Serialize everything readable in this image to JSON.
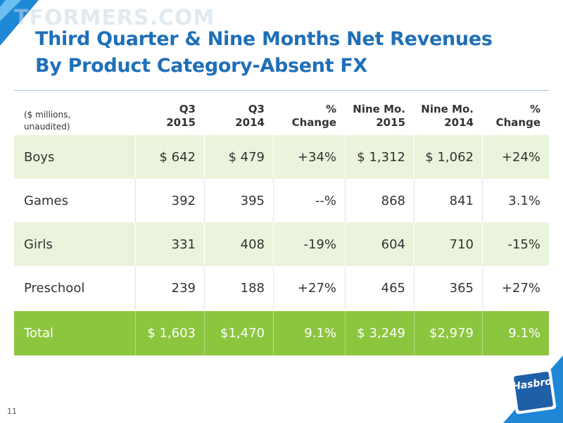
{
  "watermark": "TFORMERS.COM",
  "title": [
    "Third Quarter & Nine Months Net Revenues",
    "By Product Category-Absent FX"
  ],
  "table": {
    "header": [
      [
        "($ millions,",
        "unaudited)"
      ],
      [
        "Q3",
        "2015"
      ],
      [
        "Q3",
        "2014"
      ],
      [
        "%",
        "Change"
      ],
      [
        "Nine Mo.",
        "2015"
      ],
      [
        "Nine Mo.",
        "2014"
      ],
      [
        "%",
        "Change"
      ]
    ],
    "rows": [
      [
        "Boys",
        "$ 642",
        "$ 479",
        "+34%",
        "$ 1,312",
        "$ 1,062",
        "+24%"
      ],
      [
        "Games",
        "392",
        "395",
        "--%",
        "868",
        "841",
        "3.1%"
      ],
      [
        "Girls",
        "331",
        "408",
        "-19%",
        "604",
        "710",
        "-15%"
      ],
      [
        "Preschool",
        "239",
        "188",
        "+27%",
        "465",
        "365",
        "+27%"
      ]
    ],
    "total": [
      "Total",
      "$ 1,603",
      "$1,470",
      "9.1%",
      "$ 3,249",
      "$2,979",
      "9.1%"
    ]
  },
  "page_number": "11",
  "logo": "Hasbro"
}
